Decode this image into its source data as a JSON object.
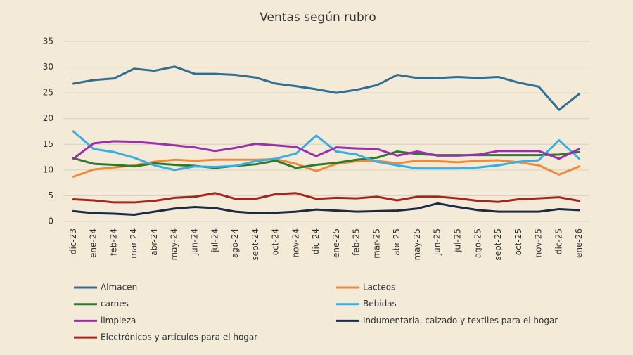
{
  "chart_data": {
    "type": "line",
    "title": "Ventas según rubro",
    "categories": [
      "dic-23",
      "ene-24",
      "feb-24",
      "mar-24",
      "abr-24",
      "may-24",
      "jun-24",
      "jul-24",
      "ago-24",
      "sept-24",
      "oct-24",
      "nov-24",
      "dic-24",
      "ene-25",
      "feb-25",
      "mar-25",
      "abr-25",
      "may-25",
      "jun-25",
      "jul-25",
      "ago-25",
      "sept-25",
      "oct-25",
      "nov-25",
      "dic-25",
      "ene-26"
    ],
    "ylim": [
      0,
      35
    ],
    "yticks": [
      0,
      5,
      10,
      15,
      20,
      25,
      30,
      35
    ],
    "grid": true,
    "series": [
      {
        "name": "Almacen",
        "color": "#2e6f93",
        "values": [
          26.8,
          27.5,
          27.8,
          29.7,
          29.3,
          30.1,
          28.7,
          28.7,
          28.5,
          28.0,
          26.8,
          26.3,
          25.7,
          25.0,
          25.6,
          26.5,
          28.5,
          27.9,
          27.9,
          28.1,
          27.9,
          28.1,
          27.0,
          26.2,
          21.7,
          24.8
        ]
      },
      {
        "name": "Lacteos",
        "color": "#f08a3a",
        "values": [
          8.7,
          10.1,
          10.5,
          10.9,
          11.6,
          12.0,
          11.8,
          12.0,
          12.0,
          12.0,
          12.1,
          11.2,
          9.8,
          11.2,
          11.7,
          11.8,
          11.3,
          11.8,
          11.7,
          11.5,
          11.8,
          11.9,
          11.5,
          10.9,
          9.1,
          10.7
        ]
      },
      {
        "name": "carnes",
        "color": "#2d7a2d",
        "values": [
          12.3,
          11.2,
          11.0,
          10.7,
          11.3,
          11.0,
          10.8,
          10.4,
          10.8,
          11.1,
          11.8,
          10.4,
          11.0,
          11.4,
          12.0,
          12.4,
          13.6,
          13.1,
          12.9,
          12.9,
          12.9,
          12.9,
          12.9,
          12.9,
          13.0,
          13.5
        ]
      },
      {
        "name": "Bebidas",
        "color": "#3aaee0",
        "values": [
          17.5,
          14.1,
          13.5,
          12.4,
          10.9,
          10.0,
          10.7,
          10.6,
          10.8,
          11.7,
          12.2,
          13.2,
          16.7,
          13.6,
          13.0,
          11.6,
          10.9,
          10.3,
          10.3,
          10.3,
          10.5,
          10.9,
          11.6,
          11.9,
          15.8,
          12.2
        ]
      },
      {
        "name": "limpieza",
        "color": "#9b2fae",
        "values": [
          12.2,
          15.2,
          15.6,
          15.5,
          15.2,
          14.8,
          14.4,
          13.7,
          14.3,
          15.1,
          14.8,
          14.5,
          12.7,
          14.4,
          14.2,
          14.1,
          12.8,
          13.6,
          12.8,
          12.8,
          13.0,
          13.7,
          13.7,
          13.7,
          12.2,
          14.1
        ]
      },
      {
        "name": "Indumentaria, calzado y textiles para el hogar",
        "color": "#1a2b45",
        "values": [
          2.0,
          1.6,
          1.5,
          1.3,
          1.9,
          2.5,
          2.8,
          2.6,
          1.9,
          1.6,
          1.7,
          1.9,
          2.3,
          2.1,
          1.9,
          2.0,
          2.1,
          2.5,
          3.5,
          2.8,
          2.2,
          1.9,
          1.9,
          1.9,
          2.4,
          2.2
        ]
      },
      {
        "name": "Electrónicos y artículos para el hogar",
        "color": "#a3281c",
        "values": [
          4.3,
          4.1,
          3.7,
          3.7,
          4.0,
          4.6,
          4.8,
          5.5,
          4.4,
          4.4,
          5.3,
          5.5,
          4.4,
          4.6,
          4.5,
          4.8,
          4.1,
          4.8,
          4.8,
          4.5,
          4.0,
          3.8,
          4.3,
          4.5,
          4.7,
          4.0
        ]
      }
    ]
  }
}
